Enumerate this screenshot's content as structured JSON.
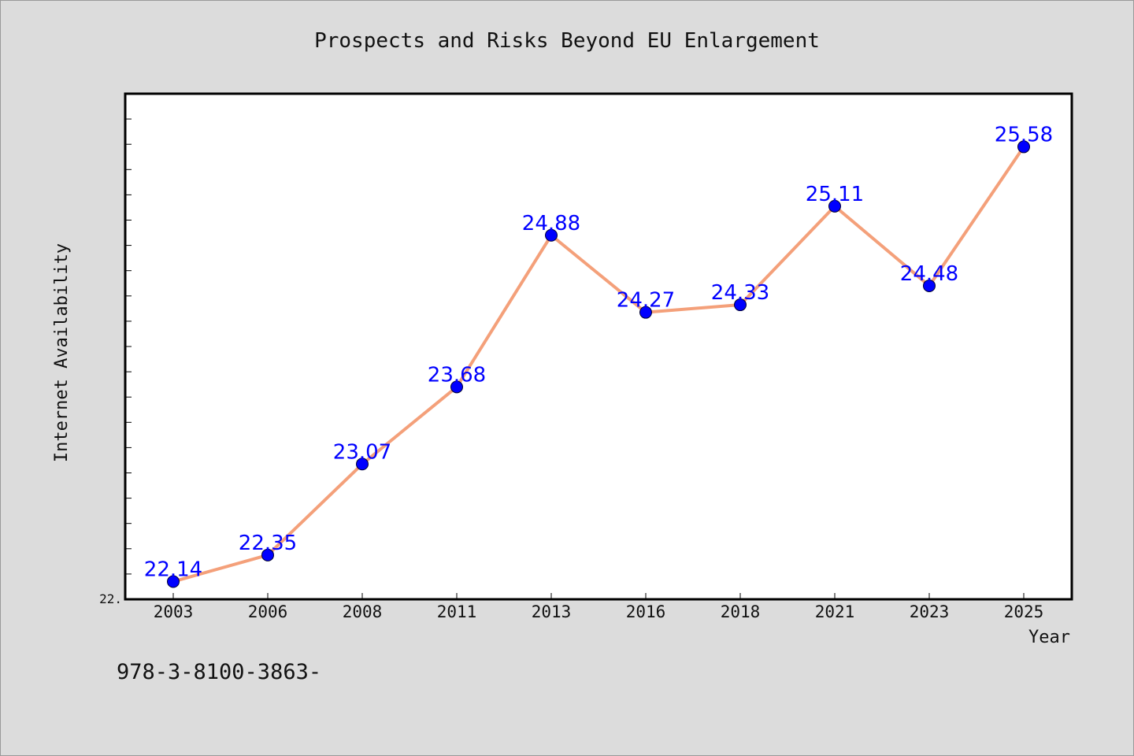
{
  "chart_data": {
    "type": "line",
    "title": "Prospects and Risks Beyond EU Enlargement",
    "xlabel": "Year",
    "ylabel": "Internet Availability",
    "categories": [
      "2003",
      "2006",
      "2008",
      "2011",
      "2013",
      "2016",
      "2018",
      "2021",
      "2023",
      "2025"
    ],
    "series": [
      {
        "values": [
          22.14,
          22.35,
          23.07,
          23.68,
          24.88,
          24.27,
          24.33,
          25.11,
          24.48,
          25.58
        ]
      }
    ],
    "y_tick_labels": [
      "22."
    ],
    "ylim": [
      22.0,
      26.0
    ],
    "grid": false,
    "line_color": "#f4a07a",
    "marker_color": "#0000ff",
    "label_color": "#0000ff"
  },
  "footer_text": "978-3-8100-3863-"
}
